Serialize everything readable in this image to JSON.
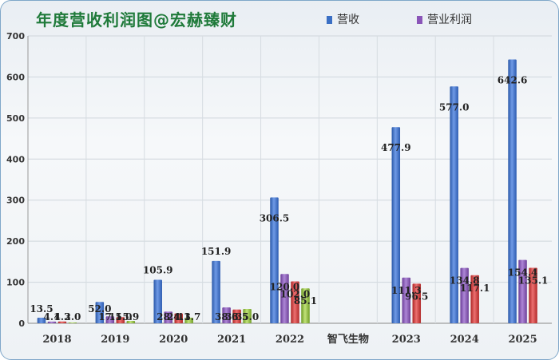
{
  "chart_data": {
    "type": "bar",
    "title": "年度营收利润图@宏赫臻财",
    "categories": [
      "2018",
      "2019",
      "2020",
      "2021",
      "2022",
      "智飞生物",
      "2023",
      "2024",
      "2025"
    ],
    "ylim": [
      0,
      700
    ],
    "yticks": [
      0,
      100,
      200,
      300,
      400,
      500,
      600,
      700
    ],
    "legend_position": "top-right",
    "series": [
      {
        "name": "营收",
        "color": "#3a6fc4",
        "values": [
          13.5,
          52.0,
          105.9,
          151.9,
          306.5,
          null,
          477.9,
          577.0,
          642.6
        ],
        "labels": [
          "13.5",
          "52.0",
          "105.9",
          "151.9",
          "306.5",
          "",
          "477.9",
          "577.0",
          "642.6"
        ]
      },
      {
        "name": "营业利润",
        "color": "#8a55b8",
        "values": [
          4.1,
          17.1,
          28.4,
          38.6,
          120.0,
          null,
          111.3,
          134.8,
          154.4
        ],
        "labels": [
          "4.1",
          "17.1",
          "28.4",
          "38.6",
          "120.0",
          "",
          "111.3",
          "134.8",
          "154.4"
        ]
      },
      {
        "name": "",
        "color": "#d23a3a",
        "values": [
          4.3,
          15.0,
          24.1,
          33.5,
          102.0,
          null,
          96.5,
          117.1,
          135.1
        ],
        "labels": [
          "4.3",
          "15.0",
          "24.1",
          "33.5",
          "102.0",
          "",
          "96.5",
          "117.1",
          "135.1"
        ]
      },
      {
        "name": "",
        "color": "#90c03c",
        "values": [
          2.0,
          5.9,
          13.7,
          35.0,
          85.1,
          null,
          null,
          null,
          null
        ],
        "labels": [
          "2.0",
          "5.9",
          "13.7",
          "35.0",
          "85.1",
          "",
          "",
          "",
          ""
        ]
      }
    ]
  }
}
